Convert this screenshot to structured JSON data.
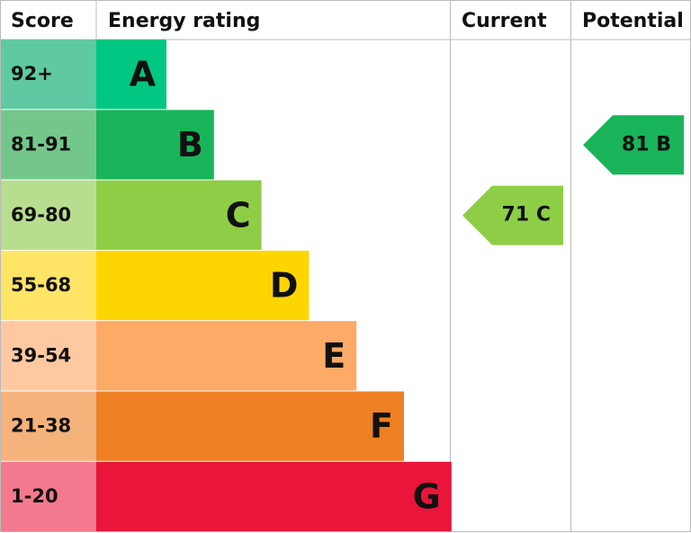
{
  "headers": {
    "score": "Score",
    "rating": "Energy rating",
    "current": "Current",
    "potential": "Potential"
  },
  "bands": [
    {
      "score": "92+",
      "letter": "A",
      "color": "#00c781",
      "score_color": "#5fc9a2"
    },
    {
      "score": "81-91",
      "letter": "B",
      "color": "#19b459",
      "score_color": "#74c78b"
    },
    {
      "score": "69-80",
      "letter": "C",
      "color": "#8dce46",
      "score_color": "#b7de8f"
    },
    {
      "score": "55-68",
      "letter": "D",
      "color": "#ffd500",
      "score_color": "#ffe466"
    },
    {
      "score": "39-54",
      "letter": "E",
      "color": "#fcaa65",
      "score_color": "#fec8a1"
    },
    {
      "score": "21-38",
      "letter": "F",
      "color": "#ef8023",
      "score_color": "#f5b27b"
    },
    {
      "score": "1-20",
      "letter": "G",
      "color": "#e9153b",
      "score_color": "#f37a8e"
    }
  ],
  "current": {
    "score": 71,
    "rating": "C"
  },
  "potential": {
    "score": 81,
    "rating": "B"
  }
}
